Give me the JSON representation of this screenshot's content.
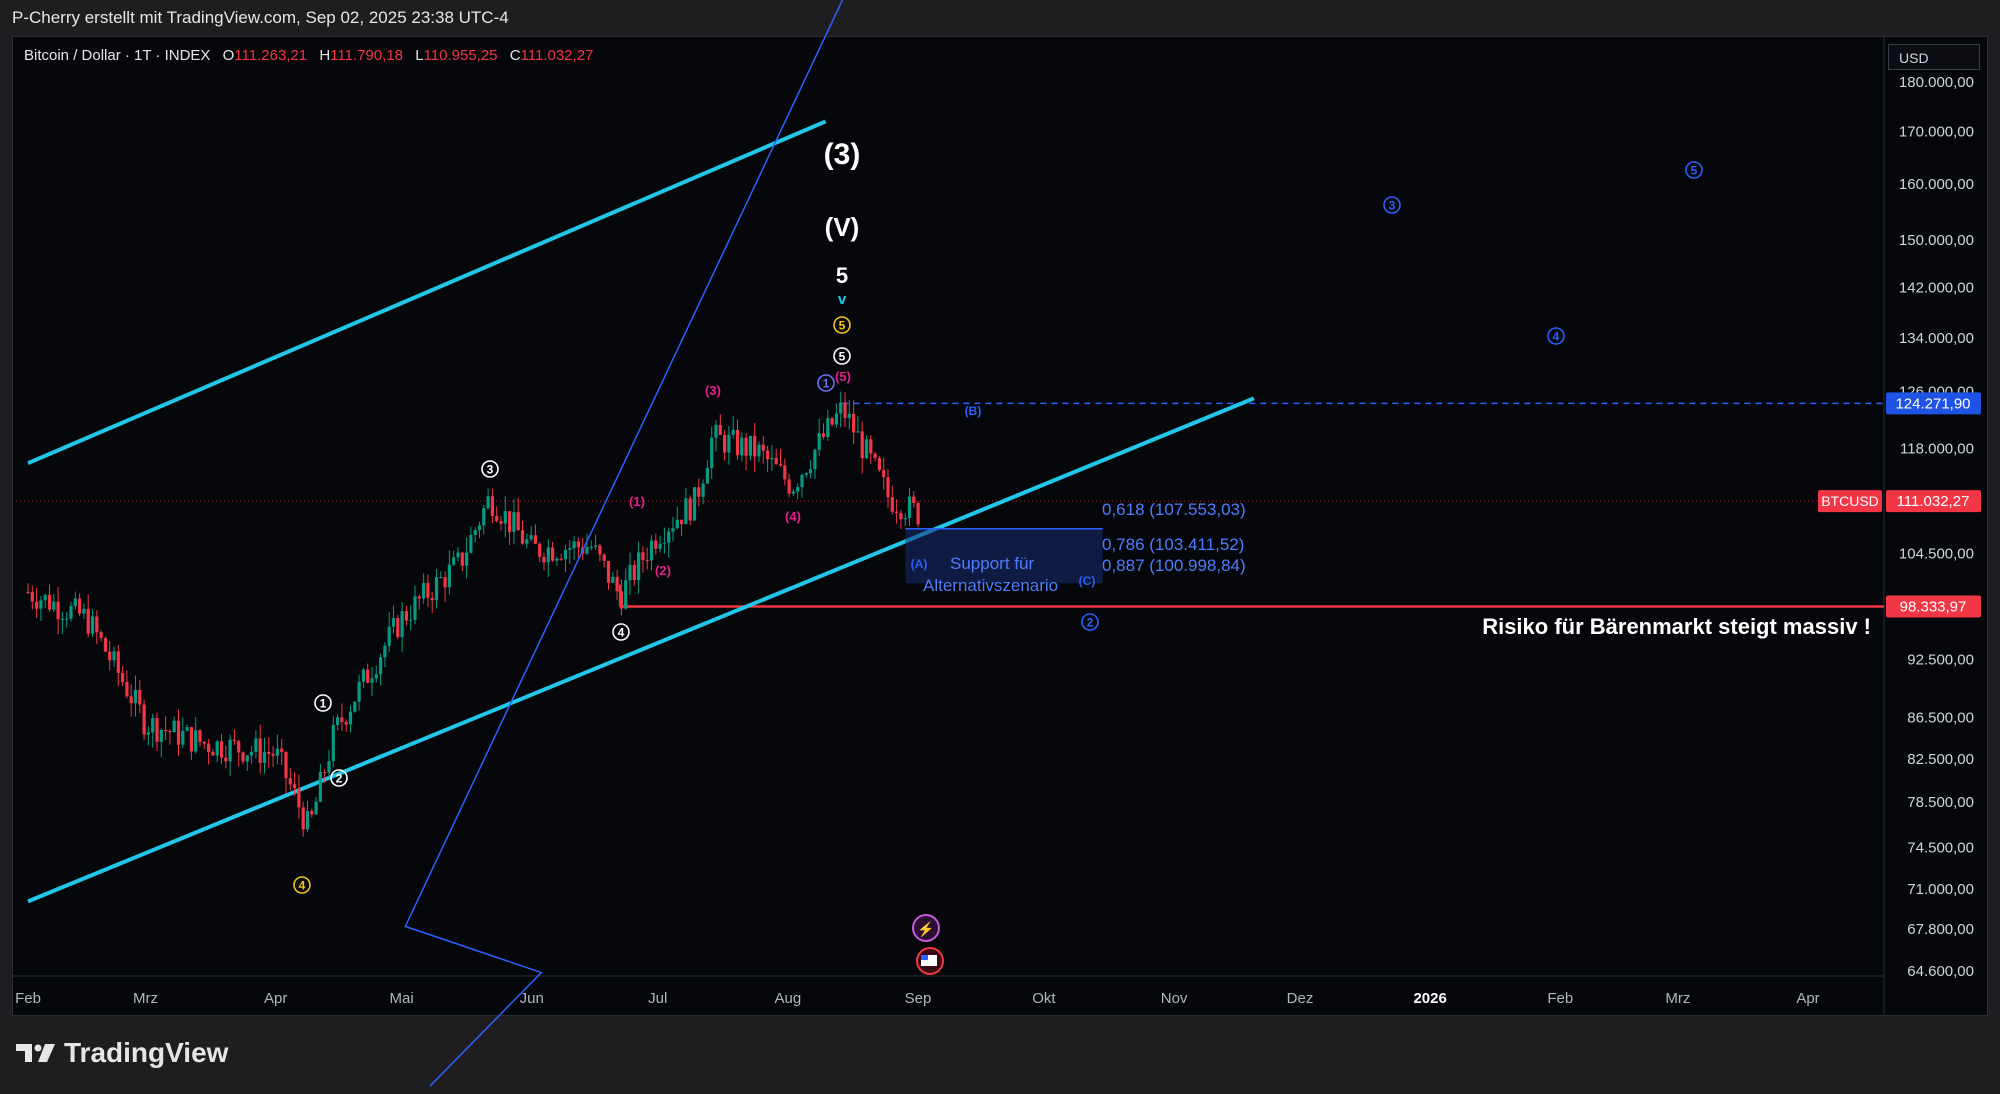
{
  "caption": "P-Cherry erstellt mit TradingView.com, Sep 02, 2025 23:38 UTC-4",
  "brand": "TradingView",
  "header": {
    "symbol": "Bitcoin / Dollar · 1T · INDEX",
    "open_key": "O",
    "open": "111.263,21",
    "high_key": "H",
    "high": "111.790,18",
    "low_key": "L",
    "low": "110.955,25",
    "close_key": "C",
    "close": "111.032,27"
  },
  "currency": "USD",
  "chart_data": {
    "type": "candlestick",
    "y_scale": "log",
    "ylim": [
      63000,
      185000
    ],
    "x_tick_labels": [
      "Feb",
      "Mrz",
      "Apr",
      "Mai",
      "Jun",
      "Jul",
      "Aug",
      "Sep",
      "Okt",
      "Nov",
      "Dez",
      "2026",
      "Feb",
      "Mrz",
      "Apr"
    ],
    "y_tick_labels": [
      {
        "label": "180.000,00",
        "value": 180000
      },
      {
        "label": "170.000,00",
        "value": 170000
      },
      {
        "label": "160.000,00",
        "value": 160000
      },
      {
        "label": "150.000,00",
        "value": 150000
      },
      {
        "label": "142.000,00",
        "value": 142000
      },
      {
        "label": "134.000,00",
        "value": 134000
      },
      {
        "label": "126.000,00",
        "value": 126000
      },
      {
        "label": "118.000,00",
        "value": 118000
      },
      {
        "label": "104.500,00",
        "value": 104500
      },
      {
        "label": "92.500,00",
        "value": 92500
      },
      {
        "label": "86.500,00",
        "value": 86500
      },
      {
        "label": "82.500,00",
        "value": 82500
      },
      {
        "label": "78.500,00",
        "value": 78500
      },
      {
        "label": "74.500,00",
        "value": 74500
      },
      {
        "label": "71.000,00",
        "value": 71000
      },
      {
        "label": "67.800,00",
        "value": 67800
      },
      {
        "label": "64.600,00",
        "value": 64600
      }
    ],
    "price_badges": [
      {
        "label": "124.271,90",
        "value": 124271.9,
        "color": "#1e53e5"
      },
      {
        "label": "111.032,27",
        "value": 111032.27,
        "tag": "BTCUSD",
        "color": "#f23645"
      },
      {
        "label": "98.333,97",
        "value": 98333.97,
        "color": "#f23645"
      }
    ],
    "closes_weekly": [
      {
        "date": "2025-02-01",
        "close": 100000
      },
      {
        "date": "2025-02-15",
        "close": 97000
      },
      {
        "date": "2025-03-01",
        "close": 86000
      },
      {
        "date": "2025-03-15",
        "close": 84000
      },
      {
        "date": "2025-04-01",
        "close": 83000
      },
      {
        "date": "2025-04-09",
        "close": 76000
      },
      {
        "date": "2025-04-15",
        "close": 85000
      },
      {
        "date": "2025-05-01",
        "close": 97000
      },
      {
        "date": "2025-05-15",
        "close": 103500
      },
      {
        "date": "2025-05-22",
        "close": 111500
      },
      {
        "date": "2025-06-01",
        "close": 105000
      },
      {
        "date": "2025-06-15",
        "close": 105500
      },
      {
        "date": "2025-06-22",
        "close": 99500
      },
      {
        "date": "2025-07-01",
        "close": 107000
      },
      {
        "date": "2025-07-10",
        "close": 111000
      },
      {
        "date": "2025-07-14",
        "close": 119500
      },
      {
        "date": "2025-07-25",
        "close": 117500
      },
      {
        "date": "2025-08-02",
        "close": 113000
      },
      {
        "date": "2025-08-14",
        "close": 123500
      },
      {
        "date": "2025-08-25",
        "close": 111500
      },
      {
        "date": "2025-09-01",
        "close": 109500
      },
      {
        "date": "2025-09-02",
        "close": 111032
      }
    ],
    "channel_lines": [
      {
        "name": "upper",
        "points": [
          {
            "date": "2025-02-01",
            "value": 116000
          },
          {
            "date": "2025-08-10",
            "value": 172000
          }
        ]
      },
      {
        "name": "lower",
        "points": [
          {
            "date": "2025-02-01",
            "value": 70000
          },
          {
            "date": "2025-11-20",
            "value": 125000
          }
        ]
      }
    ],
    "labels": {
      "wave3": "(3)",
      "waveV": "(V)",
      "wave5": "5",
      "arrow": "v",
      "c1": "1",
      "c2": "2",
      "c3": "3",
      "c4": "4",
      "c5": "5",
      "p1": "(1)",
      "p2": "(2)",
      "p3": "(3)",
      "p4": "(4)",
      "p5": "(5)",
      "A": "(A)",
      "B": "(B)",
      "C": "(C)"
    },
    "fib_levels": [
      {
        "text": "0,618 (107.553,03)",
        "value": 107553.03
      },
      {
        "text": "0,786 (103.411,52)",
        "value": 103411.52
      },
      {
        "text": "0,887 (100.998,84)",
        "value": 100998.84
      }
    ],
    "support_text_1": "Support für",
    "support_text_2": "Alternativszenario",
    "risk_text": "Risiko für Bärenmarkt steigt massiv !"
  }
}
